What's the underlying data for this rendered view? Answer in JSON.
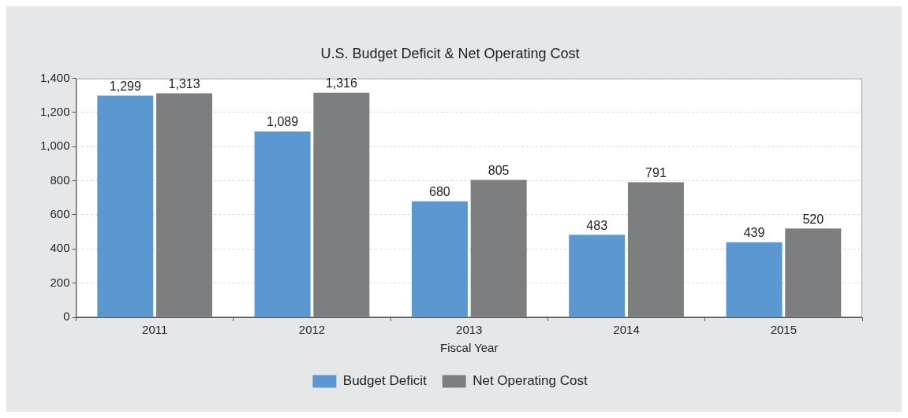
{
  "chart_data": {
    "type": "bar",
    "title": "U.S. Budget Deficit & Net Operating Cost",
    "xlabel": "Fiscal Year",
    "categories": [
      "2011",
      "2012",
      "2013",
      "2014",
      "2015"
    ],
    "series": [
      {
        "name": "Budget Deficit",
        "color": "#5b97d1",
        "values": [
          1299,
          1089,
          680,
          483,
          439
        ],
        "value_labels": [
          "1,299",
          "1,089",
          "680",
          "483",
          "439"
        ]
      },
      {
        "name": "Net Operating Cost",
        "color": "#7d7e80",
        "values": [
          1313,
          1316,
          805,
          791,
          520
        ],
        "value_labels": [
          "1,313",
          "1,316",
          "805",
          "791",
          "520"
        ]
      }
    ],
    "ylim": [
      0,
      1400
    ],
    "yticks": [
      {
        "value": 0,
        "label": "0"
      },
      {
        "value": 200,
        "label": "200"
      },
      {
        "value": 400,
        "label": "400"
      },
      {
        "value": 600,
        "label": "600"
      },
      {
        "value": 800,
        "label": "800"
      },
      {
        "value": 1000,
        "label": "1,000"
      },
      {
        "value": 1200,
        "label": "1,200"
      },
      {
        "value": 1400,
        "label": "1,400"
      }
    ],
    "grid": "y",
    "legend": "bottom"
  }
}
